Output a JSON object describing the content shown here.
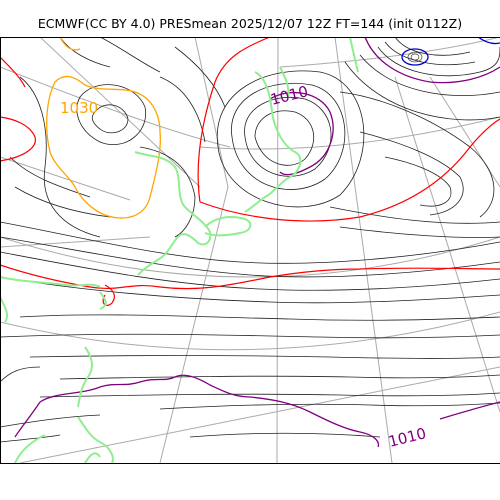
{
  "title": "ECMWF(CC BY 4.0) PRESmean 2025/12/07 12Z FT=144 (init 0112Z)",
  "contour_labels": {
    "high_1030": "1030",
    "low_1010_north": "1010",
    "low_1010_south": "1010"
  },
  "colors": {
    "isobar": "#222222",
    "isobar_1010": "#800080",
    "isobar_1020": "#ff0000",
    "isobar_1030": "#ffa500",
    "coastline": "#90ee90",
    "graticule": "#aaaaaa",
    "deep_low": "#0000cc"
  }
}
